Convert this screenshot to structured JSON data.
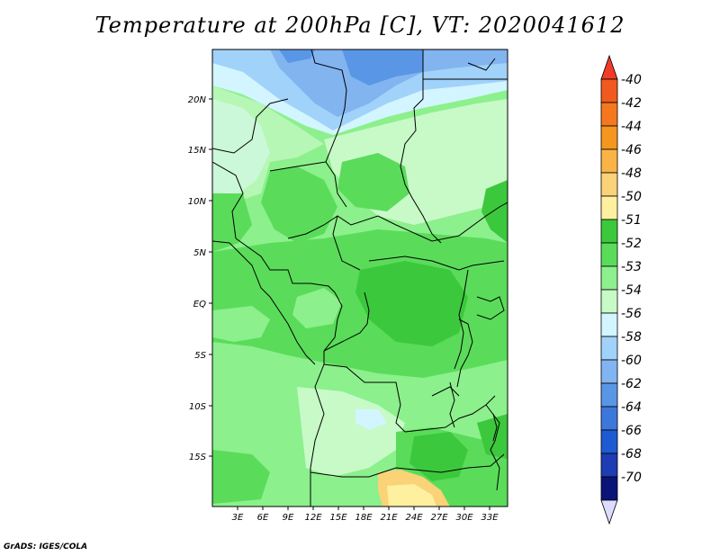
{
  "title": "Temperature at 200hPa [C], VT: 2020041612",
  "credit": "GrADS: IGES/COLA",
  "lat_labels": [
    "20N",
    "15N",
    "10N",
    "5N",
    "EQ",
    "5S",
    "10S",
    "15S"
  ],
  "lon_labels": [
    "3E",
    "6E",
    "9E",
    "12E",
    "15E",
    "18E",
    "21E",
    "24E",
    "27E",
    "30E",
    "33E"
  ],
  "colorbar": {
    "labels": [
      "-40",
      "-42",
      "-44",
      "-46",
      "-48",
      "-50",
      "-51",
      "-52",
      "-53",
      "-54",
      "-56",
      "-58",
      "-60",
      "-62",
      "-64",
      "-66",
      "-68",
      "-70"
    ],
    "colors": [
      "#f03c28",
      "#f05a1e",
      "#f5781e",
      "#f5961e",
      "#f8b446",
      "#fad278",
      "#fff0a0",
      "#3cc83c",
      "#5adc5a",
      "#8cf08c",
      "#c8fac8",
      "#d2f5ff",
      "#a0d2fa",
      "#82b4f0",
      "#5a96e6",
      "#3c78dc",
      "#1e5ad2",
      "#1e3cb4",
      "#0a1478",
      "#dcdcff"
    ]
  }
}
